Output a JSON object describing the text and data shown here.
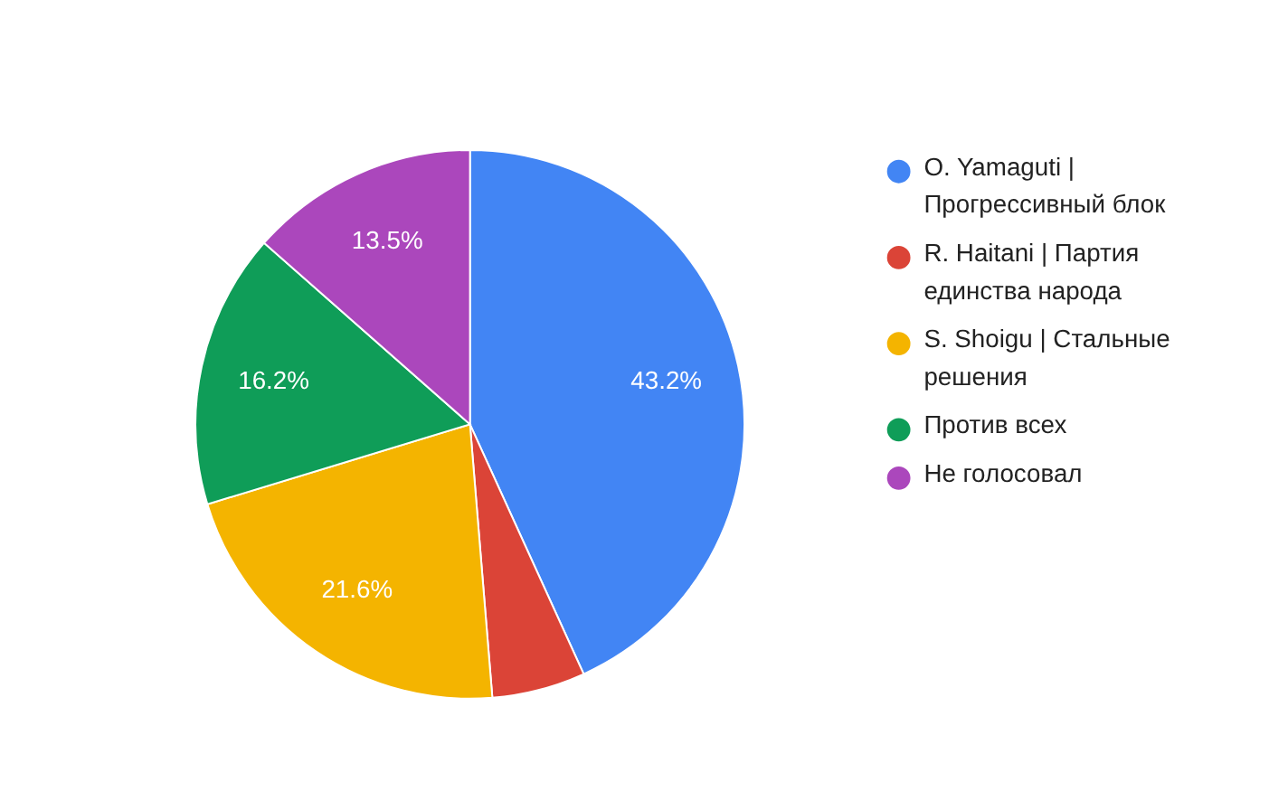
{
  "chart_data": {
    "type": "pie",
    "categories": [
      "O. Yamaguti | Прогрессивный блок",
      "R. Haitani | Партия единства народа",
      "S. Shoigu | Стальные решения",
      "Против всех",
      "Не голосовал"
    ],
    "values": [
      43.2,
      5.5,
      21.6,
      16.2,
      13.5
    ],
    "colors": [
      "#4285f4",
      "#db4437",
      "#f4b400",
      "#0f9d58",
      "#ab47bc"
    ],
    "value_labels": [
      "43.2%",
      null,
      "21.6%",
      "16.2%",
      "13.5%"
    ],
    "legend": "right"
  }
}
